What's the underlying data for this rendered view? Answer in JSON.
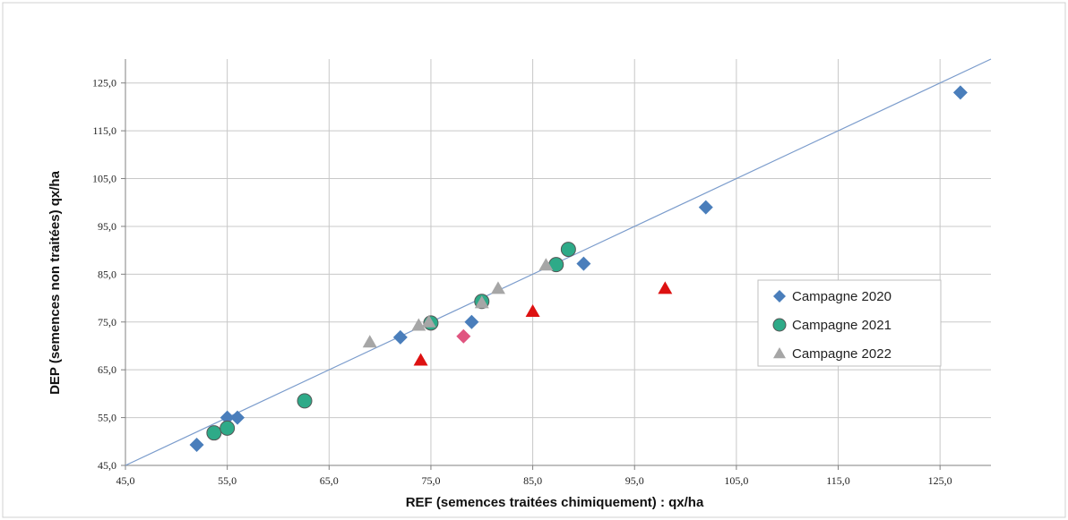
{
  "chart_data": {
    "type": "scatter",
    "xlabel": "REF  (semences traitées chimiquement) : qx/ha",
    "ylabel": "DEP (semences non traitées) qx/ha",
    "xlim": [
      45,
      130
    ],
    "ylim": [
      45,
      130
    ],
    "x_ticks": [
      "45,0",
      "55,0",
      "65,0",
      "75,0",
      "85,0",
      "95,0",
      "105,0",
      "115,0",
      "125,0"
    ],
    "y_ticks": [
      "45,0",
      "55,0",
      "65,0",
      "75,0",
      "85,0",
      "95,0",
      "105,0",
      "115,0",
      "125,0"
    ],
    "x_tick_values": [
      45,
      55,
      65,
      75,
      85,
      95,
      105,
      115,
      125
    ],
    "y_tick_values": [
      45,
      55,
      65,
      75,
      85,
      95,
      105,
      115,
      125
    ],
    "grid": true,
    "legend_position": "right",
    "reference_line": {
      "from": [
        45,
        45
      ],
      "to": [
        130,
        130
      ],
      "color": "#7b9ccc"
    },
    "series": [
      {
        "name": "Campagne 2020",
        "marker": "diamond",
        "color": "#4a7ebb",
        "points": [
          [
            52,
            49.3
          ],
          [
            55,
            55
          ],
          [
            56,
            55
          ],
          [
            72,
            71.8
          ],
          [
            79,
            75
          ],
          [
            90,
            87.2
          ],
          [
            102,
            99
          ],
          [
            127,
            123
          ]
        ]
      },
      {
        "name": "Campagne 2021",
        "marker": "circle",
        "color": "#2eaa88",
        "points": [
          [
            53.7,
            51.8
          ],
          [
            55,
            52.8
          ],
          [
            62.6,
            58.5
          ],
          [
            75,
            74.8
          ],
          [
            80,
            79.3
          ],
          [
            87.3,
            87
          ],
          [
            88.5,
            90.2
          ]
        ]
      },
      {
        "name": "Campagne 2022",
        "marker": "triangle",
        "color": "#a6a6a6",
        "points": [
          [
            69,
            70.8
          ],
          [
            73.8,
            74.3
          ],
          [
            74.8,
            75
          ],
          [
            80,
            79
          ],
          [
            81.6,
            82
          ],
          [
            86.3,
            86.9
          ]
        ]
      },
      {
        "marker": "triangle",
        "color": "#dd1111",
        "points": [
          [
            74,
            67
          ],
          [
            85,
            77.2
          ],
          [
            98,
            82
          ]
        ]
      },
      {
        "marker": "diamond",
        "color": "#e05580",
        "points": [
          [
            78.2,
            72
          ]
        ]
      }
    ]
  }
}
